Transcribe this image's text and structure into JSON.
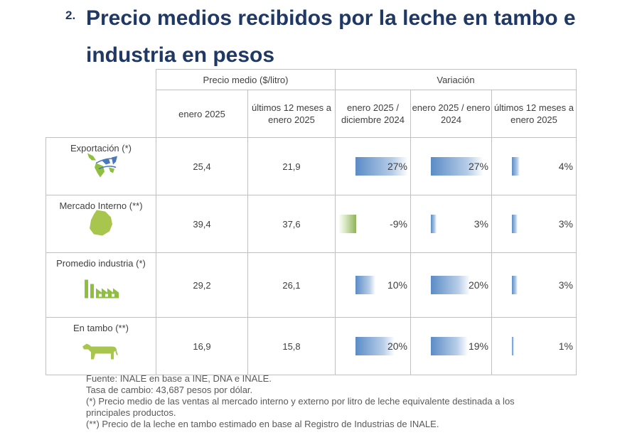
{
  "heading": {
    "number": "2.",
    "title": "Precio medios recibidos por la leche en tambo e industria en pesos"
  },
  "table": {
    "group_headers": {
      "price": "Precio medio ($/litro)",
      "variation": "Variación"
    },
    "sub_headers": {
      "c1": "enero 2025",
      "c2": "últimos 12 meses a enero 2025",
      "c3": "enero 2025 / diciembre 2024",
      "c4": "enero 2025 / enero 2024",
      "c5": "últimos 12 meses a enero 2025"
    },
    "rows": [
      {
        "label": "Exportación (*)",
        "icon": "south-america-map-icon",
        "enero": "25,4",
        "ult12": "21,9",
        "v1": {
          "text": "27%",
          "value": 27
        },
        "v2": {
          "text": "27%",
          "value": 27
        },
        "v3": {
          "text": "4%",
          "value": 4
        }
      },
      {
        "label": "Mercado Interno (**)",
        "icon": "uruguay-map-icon",
        "enero": "39,4",
        "ult12": "37,6",
        "v1": {
          "text": "-9%",
          "value": -9
        },
        "v2": {
          "text": "3%",
          "value": 3
        },
        "v3": {
          "text": "3%",
          "value": 3
        }
      },
      {
        "label": "Promedio industria (*)",
        "icon": "factory-icon",
        "enero": "29,2",
        "ult12": "26,1",
        "v1": {
          "text": "10%",
          "value": 10
        },
        "v2": {
          "text": "20%",
          "value": 20
        },
        "v3": {
          "text": "3%",
          "value": 3
        }
      },
      {
        "label": "En tambo (**)",
        "icon": "cow-icon",
        "enero": "16,9",
        "ult12": "15,8",
        "v1": {
          "text": "20%",
          "value": 20
        },
        "v2": {
          "text": "19%",
          "value": 19
        },
        "v3": {
          "text": "1%",
          "value": 1
        }
      }
    ],
    "bar_colors": {
      "positive": "#5b8cc6",
      "negative": "#8fb25a"
    },
    "value_color": "#1f72c4"
  },
  "notes": [
    "Fuente: INALE en base a INE, DNA e INALE.",
    "Tasa de cambio: 43,687 pesos por dólar.",
    "(*) Precio medio de las ventas al mercado interno y externo por litro de leche equivalente destinada a los principales productos.",
    "(**) Precio de la leche en tambo estimado en base al Registro de Industrias de INALE."
  ]
}
